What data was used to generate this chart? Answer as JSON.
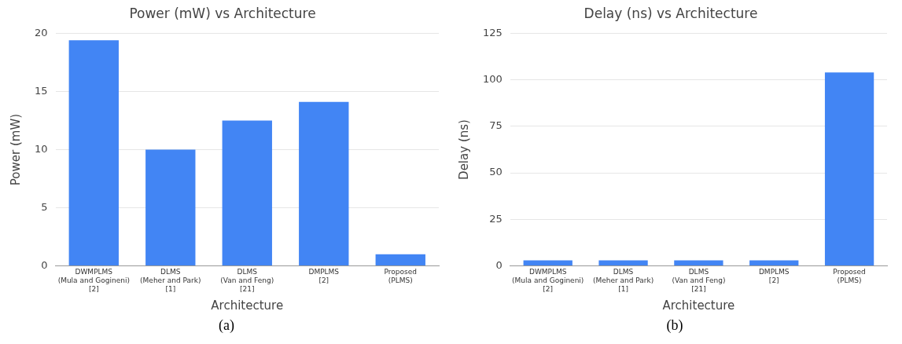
{
  "chart_data": [
    {
      "type": "bar",
      "title": "Power (mW) vs Architecture",
      "xlabel": "Architecture",
      "ylabel": "Power (mW)",
      "categories": [
        "DWMPLMS\n(Mula and Gogineni)\n[2]",
        "DLMS\n(Meher and Park)\n[1]",
        "DLMS\n(Van and Feng)\n[21]",
        "DMPLMS\n[2]",
        "Proposed\n(PLMS)"
      ],
      "values": [
        19.4,
        10.0,
        12.5,
        14.1,
        1.0
      ],
      "color": "#4285f4",
      "ylim": [
        0,
        20
      ],
      "yticks": [
        0,
        5,
        10,
        15,
        20
      ],
      "grid": "y",
      "annotations": [
        "(a)"
      ]
    },
    {
      "type": "bar",
      "title": "Delay (ns) vs Architecture",
      "xlabel": "Architecture",
      "ylabel": "Delay (ns)",
      "categories": [
        "DWMPLMS\n(Mula and Gogineni)\n[2]",
        "DLMS\n(Meher and Park)\n[1]",
        "DLMS\n(Van and Feng)\n[21]",
        "DMPLMS\n[2]",
        "Proposed\n(PLMS)"
      ],
      "values": [
        3,
        3,
        3,
        3,
        104
      ],
      "color": "#4285f4",
      "ylim": [
        0,
        125
      ],
      "yticks": [
        0,
        25,
        50,
        75,
        100,
        125
      ],
      "grid": "y",
      "annotations": [
        "(b)"
      ]
    }
  ]
}
